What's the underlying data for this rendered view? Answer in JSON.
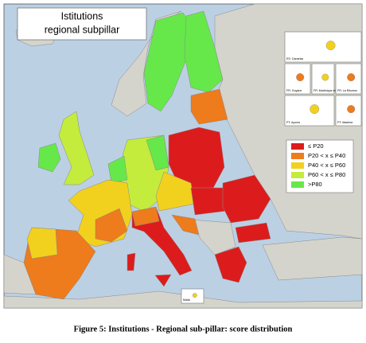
{
  "map": {
    "title_lines": [
      "Istitutions",
      "regional subpillar"
    ],
    "legend": [
      {
        "label": "≤ P20",
        "color": "#dc1c1c"
      },
      {
        "label": "P20 < x ≤ P40",
        "color": "#ee7b1c"
      },
      {
        "label": "P40 < x ≤ P60",
        "color": "#f2d01e"
      },
      {
        "label": "P60 < x ≤ P80",
        "color": "#c4ec3c"
      },
      {
        "label": ">P80",
        "color": "#66e84a"
      }
    ],
    "insets": [
      "ES: Canarias",
      "FR: Guyane",
      "FR: Martinique et Guadeloupe",
      "FR: La Réunion",
      "PT: Açores",
      "PT: Madeira",
      "Malta"
    ]
  },
  "caption": "Figure 5: Institutions - Regional sub-pillar: score distribution"
}
